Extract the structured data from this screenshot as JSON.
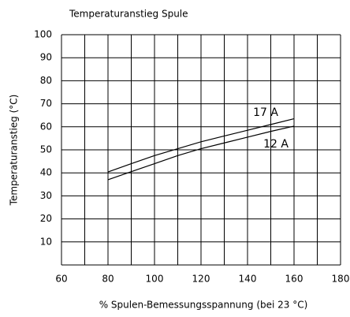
{
  "chart_data": {
    "type": "line",
    "title": "Temperaturanstieg Spule",
    "xlabel": "% Spulen-Bemessungsspannung (bei 23 °C)",
    "ylabel": "Temperaturanstieg (°C)",
    "x": [
      80,
      90,
      100,
      110,
      120,
      130,
      140,
      150,
      160
    ],
    "series": [
      {
        "name": "17 A",
        "color": "#000000",
        "values": [
          40.4,
          44,
          47.5,
          50.5,
          53.5,
          56,
          58.5,
          61,
          63.5
        ]
      },
      {
        "name": "12 A",
        "color": "#000000",
        "values": [
          37,
          40.5,
          44,
          47.5,
          50.5,
          53,
          55.5,
          58,
          60.3
        ]
      }
    ],
    "xlim": [
      60,
      180
    ],
    "xticks": [
      60,
      80,
      100,
      120,
      140,
      160,
      180
    ],
    "xgrid": [
      60,
      70,
      80,
      90,
      100,
      110,
      120,
      130,
      140,
      150,
      160,
      170,
      180
    ],
    "ylim": [
      0,
      100
    ],
    "yticks": [
      10,
      20,
      30,
      40,
      50,
      60,
      70,
      80,
      90,
      100
    ],
    "ygrid": [
      0,
      10,
      20,
      30,
      40,
      50,
      60,
      70,
      80,
      90,
      100
    ],
    "grid": true
  }
}
